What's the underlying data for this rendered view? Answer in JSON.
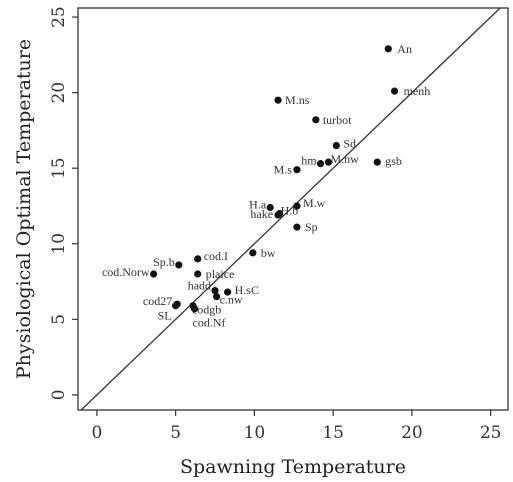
{
  "chart_data": {
    "type": "scatter",
    "xlabel": "Spawning Temperature",
    "ylabel": "Physiological Optimal Temperature",
    "xlim": [
      -1.2,
      26.1
    ],
    "ylim": [
      -1.0,
      25.6
    ],
    "xticks": [
      0,
      5,
      10,
      15,
      20,
      25
    ],
    "yticks": [
      0,
      5,
      10,
      15,
      20,
      25
    ],
    "reference_line": "y = x",
    "grid": false,
    "points": [
      {
        "label": "An",
        "x": 18.5,
        "y": 22.9
      },
      {
        "label": "menh",
        "x": 18.9,
        "y": 20.1
      },
      {
        "label": "M.ns",
        "x": 11.5,
        "y": 19.5
      },
      {
        "label": "turbot",
        "x": 13.9,
        "y": 18.2
      },
      {
        "label": "Sd",
        "x": 15.2,
        "y": 16.5
      },
      {
        "label": "gsb",
        "x": 17.8,
        "y": 15.4
      },
      {
        "label": "M.nw",
        "x": 14.7,
        "y": 15.4
      },
      {
        "label": "hm",
        "x": 14.2,
        "y": 15.3
      },
      {
        "label": "M.s",
        "x": 12.7,
        "y": 14.9
      },
      {
        "label": "H.a",
        "x": 11.0,
        "y": 12.4
      },
      {
        "label": "M.w",
        "x": 12.7,
        "y": 12.5
      },
      {
        "label": "hake",
        "x": 11.5,
        "y": 11.9
      },
      {
        "label": "H.b",
        "x": 11.6,
        "y": 12.0
      },
      {
        "label": "Sp",
        "x": 12.7,
        "y": 11.1
      },
      {
        "label": "bw",
        "x": 9.9,
        "y": 9.4
      },
      {
        "label": "cod.I",
        "x": 6.4,
        "y": 9.0
      },
      {
        "label": "Sp.b",
        "x": 5.2,
        "y": 8.6
      },
      {
        "label": "cod.Norw",
        "x": 3.6,
        "y": 8.0
      },
      {
        "label": "plaice",
        "x": 6.4,
        "y": 8.0
      },
      {
        "label": "hadd",
        "x": 7.5,
        "y": 6.9
      },
      {
        "label": "H.sC",
        "x": 8.3,
        "y": 6.8
      },
      {
        "label": "c.nw",
        "x": 7.6,
        "y": 6.5
      },
      {
        "label": "cod27",
        "x": 5.1,
        "y": 6.0
      },
      {
        "label": "codgb",
        "x": 6.1,
        "y": 5.9
      },
      {
        "label": "SL",
        "x": 5.0,
        "y": 5.9
      },
      {
        "label": "cod.Nf",
        "x": 6.2,
        "y": 5.7
      }
    ]
  }
}
